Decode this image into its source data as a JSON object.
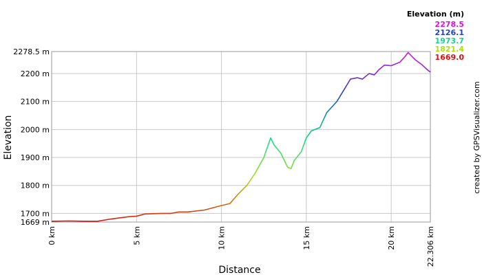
{
  "chart_data": {
    "type": "line",
    "x_label": "Distance",
    "y_label": "Elevation",
    "credit": "created by GPSVisualizer.com",
    "xlim": [
      0,
      22.306
    ],
    "ylim": [
      1669,
      2278.5
    ],
    "xticks": [
      {
        "value": 0,
        "label": "0 km"
      },
      {
        "value": 5,
        "label": "5 km"
      },
      {
        "value": 10,
        "label": "10 km"
      },
      {
        "value": 15,
        "label": "15 km"
      },
      {
        "value": 20,
        "label": "20 km"
      },
      {
        "value": 22.306,
        "label": "22.306 km"
      }
    ],
    "yticks": [
      {
        "value": 1669,
        "label": "1669 m"
      },
      {
        "value": 1700,
        "label": "1700 m"
      },
      {
        "value": 1800,
        "label": "1800 m"
      },
      {
        "value": 1900,
        "label": "1900 m"
      },
      {
        "value": 2000,
        "label": "2000 m"
      },
      {
        "value": 2100,
        "label": "2100 m"
      },
      {
        "value": 2200,
        "label": "2200 m"
      },
      {
        "value": 2278.5,
        "label": "2278.5 m"
      }
    ],
    "grid": true,
    "color_scale": {
      "title": "Elevation (m)",
      "stops": [
        {
          "value": 2278.5,
          "color": "#e010e0"
        },
        {
          "value": 2126.1,
          "color": "#2040d0"
        },
        {
          "value": 1973.7,
          "color": "#10d890"
        },
        {
          "value": 1821.4,
          "color": "#a8e010"
        },
        {
          "value": 1669,
          "label": "1669.0",
          "color": "#e01010"
        }
      ]
    },
    "x": [
      0,
      1,
      2,
      2.7,
      3.5,
      4.5,
      5,
      5.5,
      6.5,
      7,
      7.5,
      8,
      9,
      9.5,
      10,
      10.5,
      11,
      11.5,
      12,
      12.5,
      12.9,
      13.1,
      13.5,
      13.9,
      14.1,
      14.3,
      14.7,
      15,
      15.3,
      15.8,
      16.2,
      16.8,
      17.3,
      17.6,
      18,
      18.3,
      18.7,
      19,
      19.3,
      19.6,
      20,
      20.5,
      20.8,
      21,
      21.4,
      21.8,
      22.1,
      22.306
    ],
    "values": [
      1672,
      1673,
      1672,
      1672,
      1680,
      1688,
      1690,
      1698,
      1700,
      1700,
      1705,
      1705,
      1712,
      1720,
      1728,
      1735,
      1770,
      1800,
      1845,
      1900,
      1970,
      1945,
      1915,
      1865,
      1860,
      1890,
      1920,
      1970,
      1995,
      2007,
      2060,
      2100,
      2150,
      2180,
      2185,
      2180,
      2200,
      2195,
      2215,
      2230,
      2228,
      2240,
      2260,
      2275,
      2250,
      2232,
      2215,
      2205
    ]
  }
}
